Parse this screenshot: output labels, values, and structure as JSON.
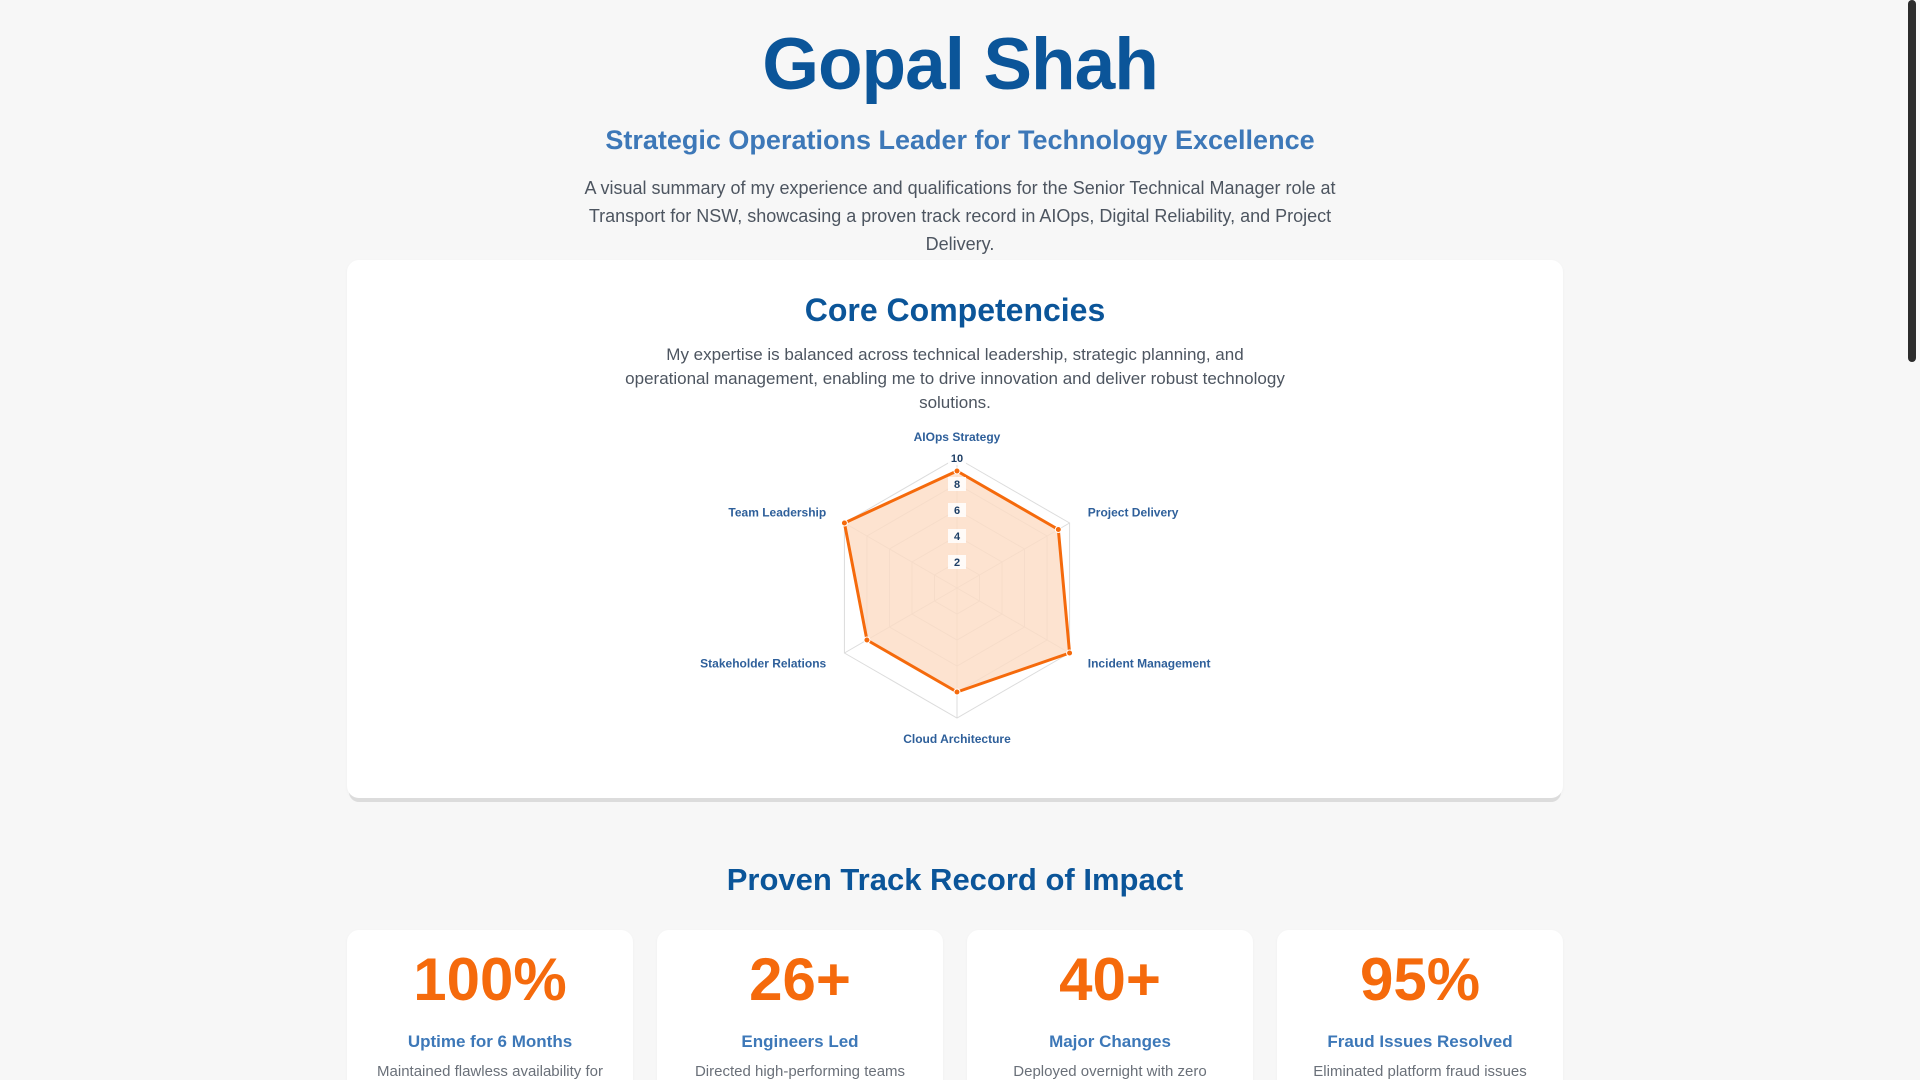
{
  "header": {
    "name": "Gopal Shah",
    "tagline": "Strategic Operations Leader for Technology Excellence",
    "intro": "A visual summary of my experience and qualifications for the Senior Technical Manager role at Transport for NSW, showcasing a proven track record in AIOps, Digital Reliability, and Project Delivery."
  },
  "competencies": {
    "title": "Core Competencies",
    "description": "My expertise is balanced across technical leadership, strategic planning, and operational management, enabling me to drive innovation and deliver robust technology solutions."
  },
  "chart_data": {
    "type": "radar",
    "title": "Core Competencies",
    "categories": [
      "AIOps Strategy",
      "Project Delivery",
      "Incident Management",
      "Cloud Architecture",
      "Stakeholder Relations",
      "Team Leadership"
    ],
    "values": [
      9,
      9,
      10,
      8,
      8,
      10
    ],
    "rlim": [
      0,
      10
    ],
    "ticks": [
      "2",
      "4",
      "6",
      "8",
      "10"
    ],
    "colors": {
      "line": "#f56a0c",
      "fill": "#fcdcc4",
      "grid": "#dcdcdc",
      "axis_label": "#2e5f9a",
      "tick_label": "#1e3f66"
    }
  },
  "impact": {
    "title": "Proven Track Record of Impact",
    "stats": [
      {
        "value": "100%",
        "label": "Uptime for 6 Months",
        "desc": "Maintained flawless availability for the Everyday Rewards website."
      },
      {
        "value": "26+",
        "label": "Engineers Led",
        "desc": "Directed high-performing teams toward business objectives."
      },
      {
        "value": "40+",
        "label": "Major Changes",
        "desc": "Deployed overnight with zero downtime for a major program."
      },
      {
        "value": "95%",
        "label": "Fraud Issues Resolved",
        "desc": "Eliminated platform fraud issues through structured analysis."
      }
    ]
  }
}
